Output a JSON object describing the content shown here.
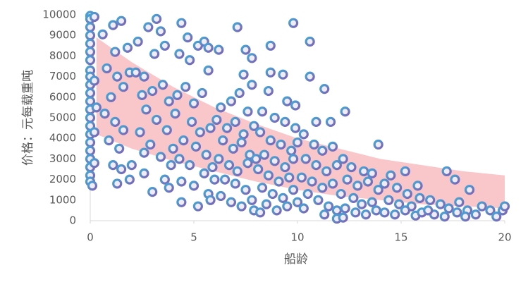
{
  "chart_data": {
    "type": "scatter",
    "x_label": "船龄",
    "y_label": "价格：元每载重吨",
    "xlim": [
      0,
      20
    ],
    "xticks": [
      0,
      5,
      10,
      15,
      20
    ],
    "ylim": [
      0,
      10000
    ],
    "yticks": [
      0,
      1000,
      2000,
      3000,
      4000,
      5000,
      6000,
      7000,
      8000,
      9000,
      10000
    ],
    "grid": false,
    "marker_colors": [
      "#3fa9d8",
      "#8062b4"
    ],
    "band": {
      "color": "#f9c6c9",
      "x": [
        0.3,
        2,
        4,
        6,
        8,
        10,
        12,
        14,
        16,
        18,
        20
      ],
      "upper": [
        8900,
        7700,
        6500,
        5500,
        4700,
        4000,
        3500,
        3000,
        2700,
        2400,
        2200
      ],
      "lower": [
        4200,
        3500,
        2900,
        2400,
        1900,
        1500,
        1200,
        1000,
        800,
        700,
        600
      ]
    },
    "series": [
      {
        "x": [
          0,
          0,
          0,
          0,
          0,
          0,
          0,
          0,
          0,
          0,
          0,
          0,
          0,
          0,
          0,
          0,
          0,
          0,
          0,
          0,
          0,
          0,
          0.1,
          0.2,
          0.2,
          0.3,
          0.2,
          0.2,
          0.6,
          1.1,
          1.5,
          1.2,
          1.8,
          0.8,
          1.3,
          1.6,
          1.0,
          1.9,
          0.7,
          1.2,
          1.6,
          0.9,
          1.4,
          1.1,
          1.5,
          1.9,
          1.3,
          2.0,
          2.3,
          2.8,
          3.2,
          3.6,
          3.4,
          3.1,
          2.6,
          2.2,
          3.0,
          2.5,
          3.5,
          3.8,
          2.7,
          3.2,
          2.4,
          3.7,
          2.9,
          3.4,
          2.6,
          3.9,
          2.6,
          3.0,
          3.6,
          3.8,
          4.0,
          4.4,
          4.7,
          4.3,
          5.2,
          5.5,
          5.7,
          4.8,
          5.7,
          4.2,
          4.6,
          5.0,
          5.4,
          4.1,
          4.9,
          5.3,
          5.8,
          4.5,
          5.1,
          5.6,
          4.3,
          4.8,
          5.5,
          5.9,
          4.4,
          5.0,
          5.7,
          4.4,
          5.2,
          5.8,
          6.0,
          7.1,
          6.2,
          7.5,
          7.8,
          7.4,
          7.8,
          6.3,
          6.8,
          7.2,
          7.6,
          6.1,
          6.6,
          7.0,
          7.4,
          7.9,
          6.4,
          6.9,
          7.3,
          7.7,
          6.2,
          6.7,
          7.1,
          7.6,
          8.0,
          6.5,
          7.0,
          7.5,
          6.3,
          6.8,
          7.3,
          7.8,
          7.9,
          9.8,
          8.7,
          8.7,
          9.3,
          8.6,
          9.5,
          9.9,
          8.3,
          8.9,
          9.4,
          9.9,
          8.2,
          8.7,
          9.2,
          9.7,
          10.0,
          8.4,
          8.9,
          9.4,
          9.8,
          8.1,
          8.6,
          9.1,
          9.6,
          8.3,
          8.8,
          9.3,
          9.8,
          8.5,
          9.0,
          9.5,
          10.0,
          8.2,
          10.6,
          10.6,
          11.3,
          10.9,
          11.6,
          10.3,
          10.8,
          11.2,
          11.7,
          10.4,
          10.9,
          11.4,
          11.9,
          10.2,
          10.7,
          11.2,
          11.7,
          10.5,
          11.0,
          11.5,
          11.3,
          11.9,
          10.3,
          11.9,
          12.3,
          13.9,
          12.2,
          12.6,
          13.2,
          13.6,
          12.4,
          12.9,
          13.4,
          13.9,
          12.1,
          12.7,
          13.1,
          13.6,
          12.3,
          12.8,
          13.3,
          13.8,
          12.2,
          14.5,
          15.2,
          14.2,
          14.8,
          15.3,
          15.8,
          14.4,
          14.9,
          15.5,
          15.9,
          14.2,
          14.7,
          15.2,
          15.7,
          16.0,
          17.2,
          17.6,
          18.3,
          16.4,
          16.9,
          17.3,
          17.8,
          18.2,
          16.6,
          17.1,
          17.7,
          18.6,
          18.9,
          19.3,
          19.6,
          19.9,
          20.0,
          18.1,
          16.3
        ],
        "values": [
          9950,
          9800,
          9400,
          9000,
          8600,
          8200,
          7800,
          7300,
          7000,
          6600,
          6200,
          5800,
          5400,
          5000,
          4600,
          4200,
          3800,
          3400,
          3000,
          2600,
          2200,
          1900,
          1700,
          9900,
          6800,
          5500,
          4300,
          2800,
          9050,
          9500,
          9700,
          8200,
          8400,
          7400,
          7000,
          6500,
          6000,
          7200,
          5200,
          4800,
          4400,
          3900,
          3500,
          2700,
          2500,
          2000,
          1800,
          2700,
          8700,
          9400,
          9800,
          8500,
          9200,
          8100,
          7000,
          7200,
          6300,
          6100,
          6600,
          5800,
          5400,
          4900,
          4300,
          4400,
          3700,
          3100,
          3300,
          2700,
          2300,
          1400,
          2000,
          1600,
          3500,
          9600,
          8900,
          8100,
          8500,
          8700,
          8400,
          7800,
          7300,
          6100,
          6500,
          5700,
          6200,
          5200,
          4800,
          4300,
          4500,
          3900,
          3600,
          3200,
          3000,
          2700,
          2300,
          2600,
          1900,
          1700,
          1300,
          900,
          700,
          1000,
          2000,
          9400,
          8300,
          8300,
          7900,
          7100,
          6600,
          5500,
          5800,
          6200,
          5300,
          4900,
          4500,
          4800,
          4200,
          4600,
          3900,
          3500,
          3800,
          3200,
          3000,
          2700,
          2400,
          2800,
          3000,
          2000,
          1800,
          1500,
          1200,
          900,
          700,
          1000,
          500,
          9600,
          8500,
          7200,
          7100,
          6300,
          5800,
          5600,
          5300,
          5000,
          4800,
          4500,
          4300,
          3900,
          3700,
          3400,
          3800,
          3200,
          2900,
          2600,
          3000,
          2500,
          2200,
          1900,
          2100,
          1600,
          1300,
          1100,
          1500,
          800,
          500,
          700,
          900,
          400,
          8700,
          7000,
          6400,
          4800,
          4800,
          4200,
          3700,
          3400,
          3600,
          3000,
          2700,
          2400,
          2700,
          2100,
          1900,
          1600,
          1800,
          1300,
          1000,
          700,
          300,
          500,
          600,
          100,
          5300,
          3700,
          3000,
          2600,
          2400,
          2300,
          2000,
          1700,
          1900,
          1500,
          1300,
          1100,
          800,
          900,
          600,
          400,
          300,
          500,
          150,
          2200,
          2400,
          1800,
          1600,
          1300,
          1700,
          1000,
          800,
          700,
          1100,
          400,
          300,
          500,
          250,
          400,
          2400,
          2000,
          1500,
          1000,
          800,
          600,
          900,
          500,
          300,
          200,
          400,
          300,
          700,
          500,
          200,
          500,
          700,
          200,
          500
        ]
      }
    ]
  }
}
